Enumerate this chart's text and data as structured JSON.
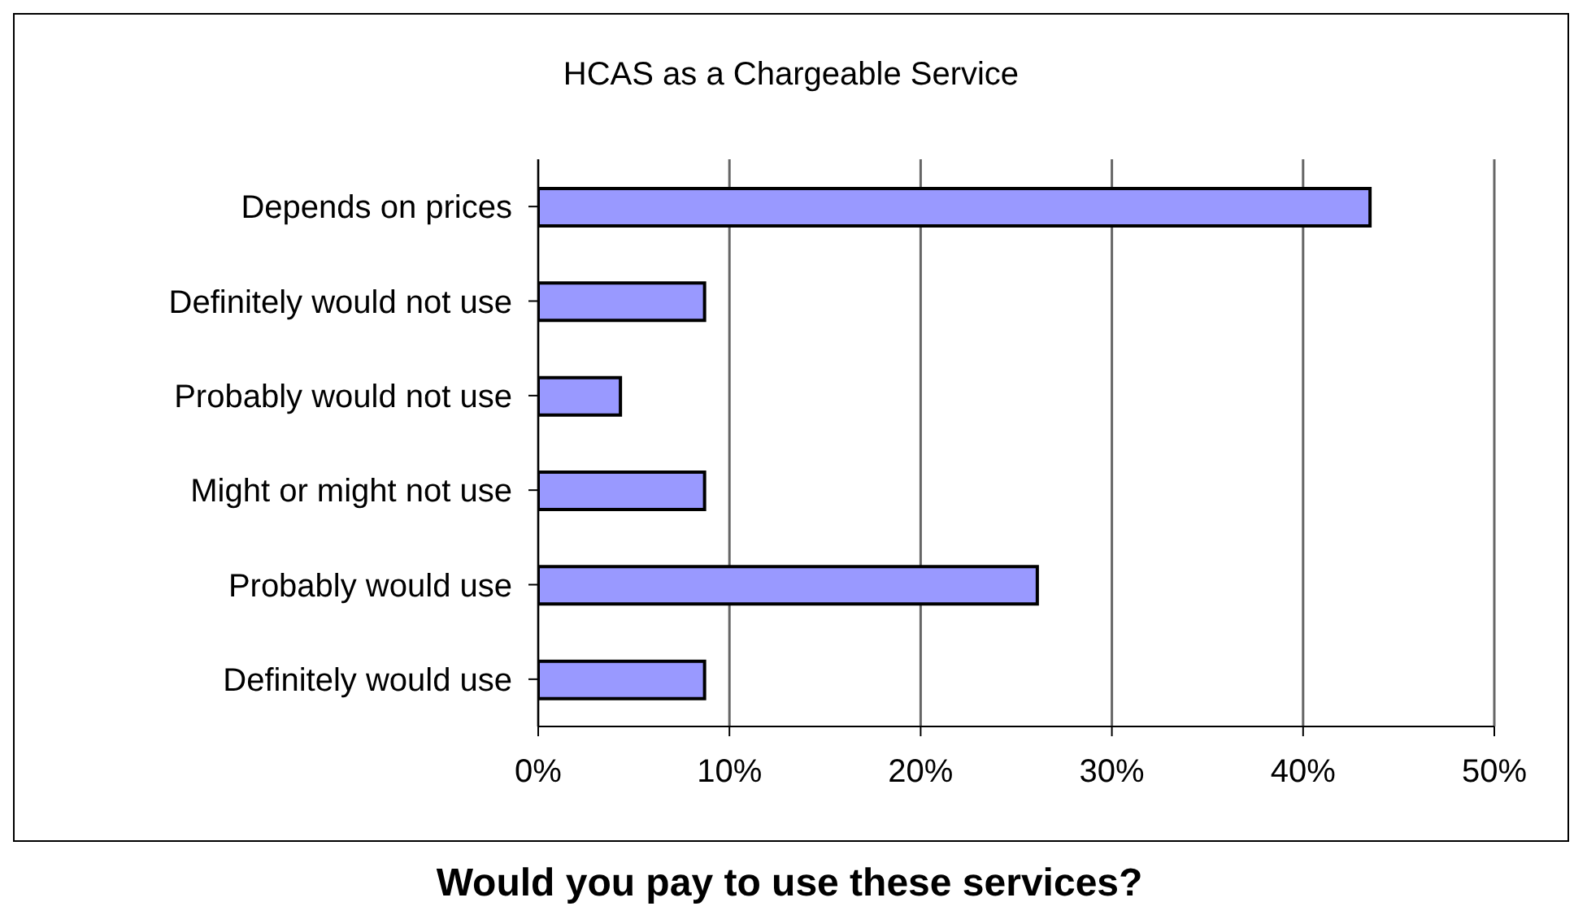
{
  "chart_data": {
    "type": "bar",
    "orientation": "horizontal",
    "title": "HCAS as a Chargeable Service",
    "subtitle": "Would you pay to use these services?",
    "categories": [
      "Depends on prices",
      "Definitely would not use",
      "Probably would not use",
      "Might or might not use",
      "Probably would use",
      "Definitely would use"
    ],
    "values": [
      43.5,
      8.7,
      4.3,
      8.7,
      26.1,
      8.7
    ],
    "color": "#9999ff",
    "xlim": [
      0,
      50
    ],
    "xticks": [
      {
        "value": 0,
        "label": "0%"
      },
      {
        "value": 10,
        "label": "10%"
      },
      {
        "value": 20,
        "label": "20%"
      },
      {
        "value": 30,
        "label": "30%"
      },
      {
        "value": 40,
        "label": "40%"
      },
      {
        "value": 50,
        "label": "50%"
      }
    ],
    "grid": "x",
    "legend": false
  }
}
